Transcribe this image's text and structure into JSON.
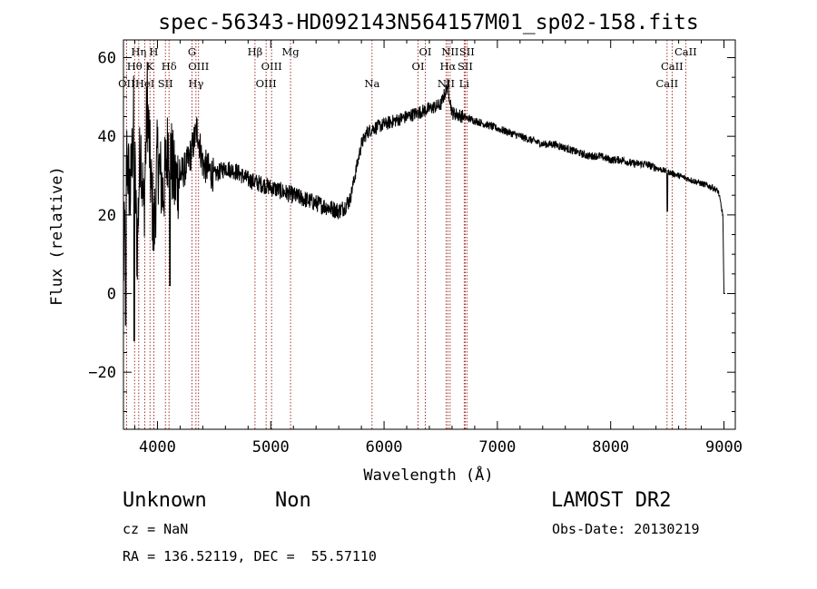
{
  "chart_data": {
    "type": "line",
    "title": "spec-56343-HD092143N564157M01_sp02-158.fits",
    "xlabel": "Wavelength (Å)",
    "ylabel": "Flux (relative)",
    "xlim": [
      3700,
      9100
    ],
    "ylim": [
      -34.5,
      64.5
    ],
    "x_ticks": [
      4000,
      5000,
      6000,
      7000,
      8000,
      9000
    ],
    "y_ticks": [
      -20,
      0,
      20,
      40,
      60
    ],
    "x_tick_labels": [
      "4000",
      "5000",
      "6000",
      "7000",
      "8000",
      "9000"
    ],
    "y_tick_labels": [
      "−20",
      "0",
      "20",
      "40",
      "60"
    ],
    "series": [
      {
        "x": [
          3700,
          3730,
          3760,
          3790,
          3820,
          3850,
          3880,
          3910,
          3940,
          3970,
          4000,
          4050,
          4100,
          4150,
          4200,
          4250,
          4300,
          4350,
          4400,
          4500,
          4600,
          4700,
          4800,
          4900,
          5000,
          5100,
          5200,
          5300,
          5400,
          5500,
          5600,
          5650,
          5700,
          5750,
          5800,
          5850,
          5900,
          6000,
          6100,
          6200,
          6300,
          6400,
          6500,
          6563,
          6600,
          6700,
          6800,
          6900,
          7000,
          7100,
          7200,
          7300,
          7400,
          7500,
          7600,
          7700,
          7800,
          7900,
          8000,
          8100,
          8200,
          8300,
          8400,
          8500,
          8600,
          8700,
          8800,
          8900,
          8950,
          8990,
          9000
        ],
        "y": [
          5,
          35,
          25,
          45,
          10,
          40,
          20,
          50,
          30,
          15,
          35,
          25,
          40,
          28,
          30,
          32,
          36,
          42,
          33,
          30,
          32,
          31,
          29,
          28,
          27,
          26,
          25,
          24,
          23,
          22,
          21,
          22,
          24,
          31,
          38,
          41,
          42,
          43,
          44,
          45,
          46,
          47,
          48,
          53,
          46,
          45,
          44,
          43,
          42,
          41,
          40,
          39,
          38,
          38,
          37,
          36,
          35,
          35,
          34,
          34,
          33,
          33,
          32,
          31,
          30,
          29,
          28,
          27,
          26,
          20,
          0
        ]
      }
    ],
    "spectral_lines": [
      {
        "name": "OII",
        "x": 3727,
        "row": 3
      },
      {
        "name": "Hθ",
        "x": 3798,
        "row": 2
      },
      {
        "name": "Hη",
        "x": 3835,
        "row": 1
      },
      {
        "name": "HeI",
        "x": 3889,
        "row": 3
      },
      {
        "name": "K",
        "x": 3934,
        "row": 2
      },
      {
        "name": "H",
        "x": 3968,
        "row": 1
      },
      {
        "name": "SII",
        "x": 4070,
        "row": 3
      },
      {
        "name": "Hδ",
        "x": 4102,
        "row": 2
      },
      {
        "name": "Gband",
        "x": 4305,
        "row": 1
      },
      {
        "name": "Hγ",
        "x": 4340,
        "row": 3
      },
      {
        "name": "OIII",
        "x": 4363,
        "row": 2
      },
      {
        "name": "Hβ",
        "x": 4861,
        "row": 1
      },
      {
        "name": "OIII",
        "x": 4959,
        "row": 3
      },
      {
        "name": "OIII",
        "x": 5007,
        "row": 2
      },
      {
        "name": "Mg",
        "x": 5175,
        "row": 1
      },
      {
        "name": "Na",
        "x": 5894,
        "row": 3
      },
      {
        "name": "OI",
        "x": 6300,
        "row": 2
      },
      {
        "name": "OI",
        "x": 6364,
        "row": 1
      },
      {
        "name": "NII",
        "x": 6548,
        "row": 3
      },
      {
        "name": "Hα",
        "x": 6563,
        "row": 2
      },
      {
        "name": "NII",
        "x": 6583,
        "row": 1
      },
      {
        "name": "Li",
        "x": 6707,
        "row": 3
      },
      {
        "name": "SII",
        "x": 6716,
        "row": 2
      },
      {
        "name": "SII",
        "x": 6731,
        "row": 1
      },
      {
        "name": "CaII",
        "x": 8498,
        "row": 3
      },
      {
        "name": "CaII",
        "x": 8542,
        "row": 2
      },
      {
        "name": "CaII",
        "x": 8662,
        "row": 1
      }
    ]
  },
  "info": {
    "object_class": "Unknown",
    "subclass": "Non",
    "survey": "LAMOST DR2",
    "cz": "cz = NaN",
    "obs_date": "Obs-Date: 20130219",
    "coords": "RA = 136.52119, DEC =  55.57110"
  }
}
